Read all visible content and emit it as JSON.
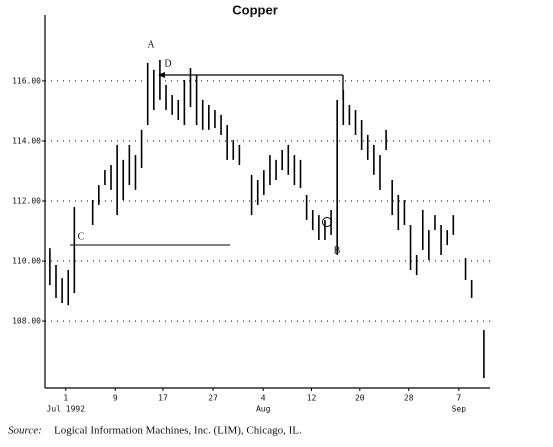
{
  "chart_data": {
    "type": "ohlc",
    "title": "Copper",
    "x": [
      0,
      1,
      2,
      3,
      4,
      7,
      8,
      9,
      10,
      11,
      12,
      13,
      14,
      15,
      16,
      17,
      18,
      19,
      20,
      21,
      22,
      23,
      24,
      25,
      26,
      27,
      28,
      29,
      30,
      31,
      33,
      34,
      35,
      36,
      37,
      38,
      39,
      40,
      41,
      42,
      43,
      44,
      45,
      46,
      47,
      48,
      49,
      50,
      51,
      52,
      53,
      54,
      55,
      56,
      57,
      58,
      59,
      60,
      61,
      62,
      63,
      64,
      65,
      66,
      68,
      69,
      71
    ],
    "high": [
      110.43,
      109.87,
      109.43,
      109.7,
      111.8,
      112.03,
      112.53,
      113.03,
      113.2,
      113.87,
      113.37,
      113.87,
      113.53,
      114.37,
      116.6,
      116.37,
      116.7,
      115.87,
      115.53,
      115.37,
      116.03,
      116.43,
      116.2,
      115.37,
      115.2,
      115.03,
      114.87,
      114.53,
      114.03,
      113.87,
      112.87,
      112.7,
      113.03,
      113.53,
      113.37,
      113.7,
      113.87,
      113.53,
      113.37,
      112.2,
      111.7,
      111.53,
      111.37,
      111.7,
      115.37,
      115.7,
      115.2,
      115.03,
      114.7,
      114.2,
      113.87,
      113.53,
      114.37,
      112.7,
      112.2,
      112.03,
      111.2,
      110.2,
      111.7,
      111.03,
      111.53,
      111.2,
      111.03,
      111.53,
      110.1,
      109.37,
      107.7
    ],
    "low": [
      109.2,
      108.77,
      108.6,
      108.53,
      108.93,
      111.2,
      111.87,
      112.53,
      112.37,
      111.53,
      112.03,
      112.53,
      112.37,
      113.1,
      114.53,
      115.03,
      115.37,
      115.03,
      114.87,
      114.7,
      114.53,
      115.13,
      114.53,
      114.37,
      114.37,
      114.43,
      114.2,
      113.37,
      113.37,
      113.2,
      111.53,
      111.87,
      112.2,
      112.53,
      112.7,
      113.03,
      112.87,
      112.53,
      112.43,
      111.37,
      111.03,
      110.7,
      110.7,
      110.87,
      110.2,
      114.53,
      114.53,
      114.2,
      113.7,
      113.37,
      112.87,
      112.37,
      113.7,
      111.53,
      111.03,
      111.2,
      109.7,
      109.53,
      110.37,
      110.03,
      111.03,
      110.2,
      110.53,
      110.87,
      109.37,
      108.77,
      106.1
    ],
    "color": "#000000",
    "xlim": [
      -0.8,
      72
    ],
    "xticks": [
      {
        "value": 2.6,
        "label": "1"
      },
      {
        "value": 10.7,
        "label": "9"
      },
      {
        "value": 18.5,
        "label": "17"
      },
      {
        "value": 26.7,
        "label": "27"
      },
      {
        "value": 34.9,
        "label": "4"
      },
      {
        "value": 42.8,
        "label": "12"
      },
      {
        "value": 50.7,
        "label": "20"
      },
      {
        "value": 58.7,
        "label": "28"
      },
      {
        "value": 66.9,
        "label": "7"
      }
    ],
    "month_labels": [
      {
        "value": 2.6,
        "label": "Jul 1992"
      },
      {
        "value": 34.9,
        "label": "Aug"
      },
      {
        "value": 66.9,
        "label": "Sep"
      }
    ],
    "ylim": [
      105.77,
      118.03
    ],
    "yticks": [
      {
        "value": 108,
        "label": "108.00"
      },
      {
        "value": 110,
        "label": "110.00"
      },
      {
        "value": 112,
        "label": "112.00"
      },
      {
        "value": 114,
        "label": "114.00"
      },
      {
        "value": 116,
        "label": "116.00"
      }
    ],
    "grid": true,
    "annotations": [
      "A",
      "B",
      "C",
      "D"
    ],
    "source_label": "Source:",
    "source": "Logical Information Machines, Inc. (LIM), Chicago, IL."
  }
}
